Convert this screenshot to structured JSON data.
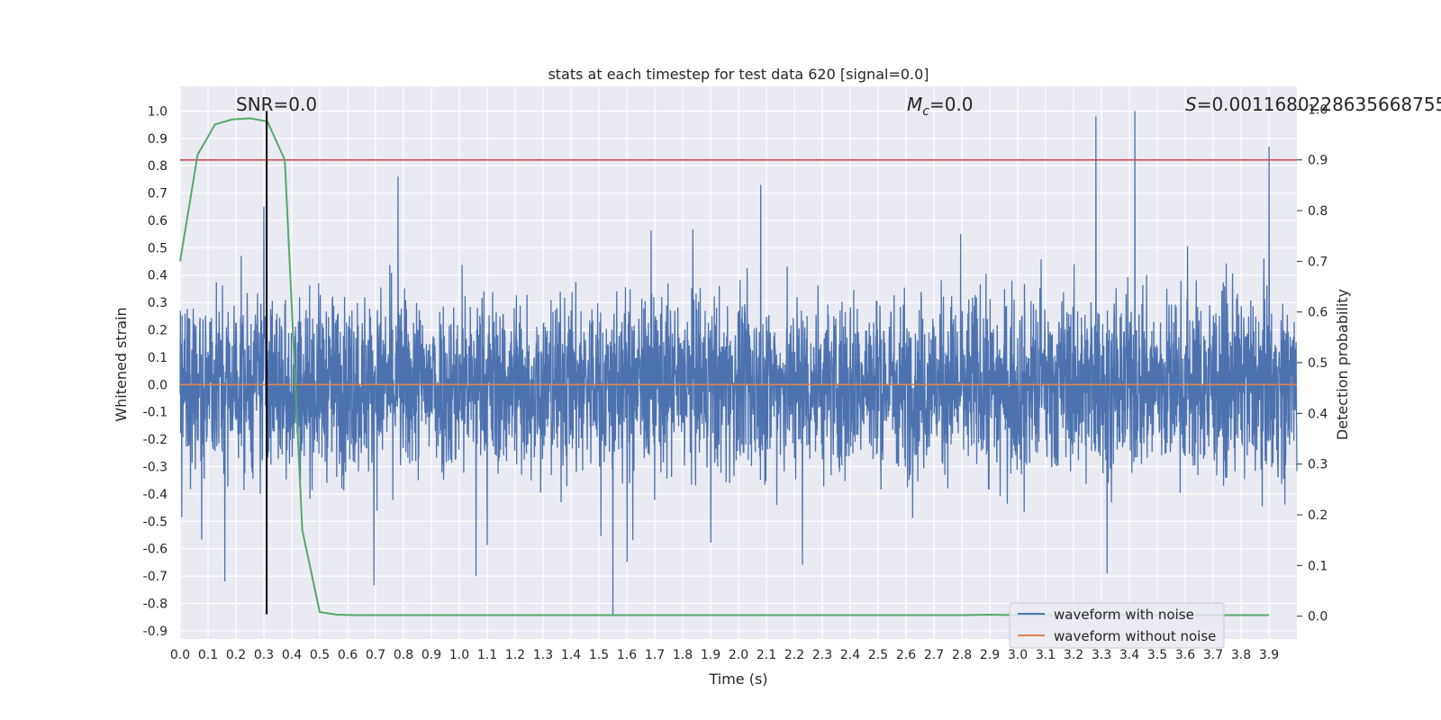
{
  "chart_data": {
    "type": "line",
    "title": "stats at each timestep for test data 620 [signal=0.0]",
    "xlabel": "Time (s)",
    "ylabel": "Whitened strain",
    "y2label": "Detection probability",
    "xlim": [
      0.0,
      4.0
    ],
    "ylim": [
      -0.93,
      1.09
    ],
    "y2lim": [
      -0.045,
      1.045
    ],
    "x_ticks": [
      "0.0",
      "0.1",
      "0.2",
      "0.3",
      "0.4",
      "0.5",
      "0.6",
      "0.7",
      "0.8",
      "0.9",
      "1.0",
      "1.1",
      "1.2",
      "1.3",
      "1.4",
      "1.5",
      "1.6",
      "1.7",
      "1.8",
      "1.9",
      "2.0",
      "2.1",
      "2.2",
      "2.3",
      "2.4",
      "2.5",
      "2.6",
      "2.7",
      "2.8",
      "2.9",
      "3.0",
      "3.1",
      "3.2",
      "3.3",
      "3.4",
      "3.5",
      "3.6",
      "3.7",
      "3.8",
      "3.9"
    ],
    "y_ticks": [
      "1.0",
      "0.9",
      "0.8",
      "0.7",
      "0.6",
      "0.5",
      "0.4",
      "0.3",
      "0.2",
      "0.1",
      "0.0",
      "-0.1",
      "-0.2",
      "-0.3",
      "-0.4",
      "-0.5",
      "-0.6",
      "-0.7",
      "-0.8",
      "-0.9"
    ],
    "y2_ticks": [
      "1.0",
      "0.9",
      "0.8",
      "0.7",
      "0.6",
      "0.5",
      "0.4",
      "0.3",
      "0.2",
      "0.1",
      "0.0"
    ],
    "annotations": {
      "snr": "SNR=0.0",
      "mc_symbol": "M",
      "mc_sub": "c",
      "mc_value": "=0.0",
      "s_symbol": "S",
      "s_value": "=0.0011680228635668755"
    },
    "noise_waveform": {
      "name": "waveform with noise",
      "color": "#4c72b0",
      "sample_count": 4096,
      "envelope_lower": -0.55,
      "envelope_upper": 0.55,
      "peaks": [
        {
          "x": 3.28,
          "y": 0.98
        },
        {
          "x": 3.42,
          "y": 1.0
        },
        {
          "x": 3.9,
          "y": 0.87
        },
        {
          "x": 2.08,
          "y": 0.73
        },
        {
          "x": 0.78,
          "y": 0.76
        },
        {
          "x": 0.3,
          "y": 0.65
        },
        {
          "x": 1.55,
          "y": -0.84
        },
        {
          "x": 1.06,
          "y": -0.7
        },
        {
          "x": 0.16,
          "y": -0.72
        },
        {
          "x": 3.32,
          "y": -0.69
        }
      ]
    },
    "clean_waveform": {
      "name": "waveform without noise",
      "color": "#dd8452",
      "value": 0.0
    },
    "detection_probability": {
      "name": "detection probability",
      "color": "#55a868",
      "x": [
        0.0,
        0.0625,
        0.125,
        0.1875,
        0.25,
        0.3125,
        0.375,
        0.4375,
        0.5,
        0.5625,
        0.625,
        0.75,
        1.0,
        2.0,
        2.8,
        2.9,
        3.0,
        3.5,
        3.9
      ],
      "y": [
        0.7,
        0.91,
        0.97,
        0.98,
        0.982,
        0.976,
        0.9,
        0.17,
        0.008,
        0.003,
        0.002,
        0.002,
        0.002,
        0.002,
        0.002,
        0.003,
        0.002,
        0.002,
        0.002
      ]
    },
    "threshold": {
      "value": 0.9,
      "color": "#c44e52",
      "axis": "right"
    },
    "marker_line": {
      "x": 0.31,
      "y_from": -0.84,
      "y_to": 1.0,
      "color": "#000000"
    },
    "legend": {
      "placement": "lower-right",
      "entries": [
        {
          "label": "waveform with noise",
          "color": "#4c72b0"
        },
        {
          "label": "waveform without noise",
          "color": "#dd8452"
        }
      ]
    },
    "grid": true
  }
}
